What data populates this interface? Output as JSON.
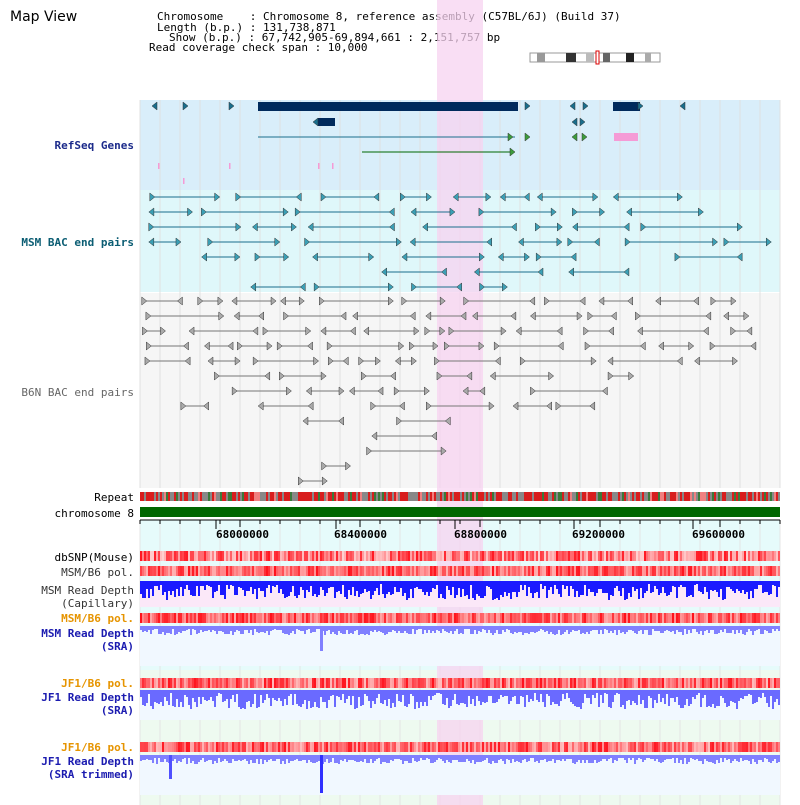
{
  "header": {
    "title": "Map View",
    "chromosome_line": "Chromosome    : Chromosome 8, reference assembly (C57BL/6J) (Build 37)",
    "length_line": "Length (b.p.) : 131,738,871",
    "show_line": "Show (b.p.) : 67,742,905-69,894,661 : 2,151,757 bp",
    "coverage_line": "Read coverage check span : 10,000"
  },
  "tracks": {
    "refseq": "RefSeq Genes",
    "msm_bac": "MSM BAC end pairs",
    "b6n_bac": "B6N BAC end pairs",
    "repeat": "Repeat",
    "chromosome": "chromosome 8",
    "dbsnp": "dbSNP(Mouse)",
    "msm_b6_pol_1": "MSM/B6 pol.",
    "msm_depth_cap_1": "MSM Read Depth",
    "msm_depth_cap_2": "(Capillary)",
    "msm_b6_pol_2": "MSM/B6 pol.",
    "msm_depth_sra_1": "MSM Read Depth",
    "msm_depth_sra_2": "(SRA)",
    "jf1_b6_pol_1": "JF1/B6 pol.",
    "jf1_depth_sra_1": "JF1 Read Depth",
    "jf1_depth_sra_2": "(SRA)",
    "jf1_b6_pol_2": "JF1/B6 pol.",
    "jf1_depth_trim_1": "JF1 Read Depth",
    "jf1_depth_trim_2": "(SRA trimmed)"
  },
  "axis": {
    "ticks": [
      "68000000",
      "68400000",
      "68800000",
      "69200000",
      "69600000"
    ]
  },
  "colors": {
    "refseq_bg": "#d9eefa",
    "msm_bg": "#dff7fa",
    "highlight": "#f7d3f0",
    "chromosome_bar": "#006600",
    "gene_dark": "#002a5c",
    "msm_feature": "#1a6e8c",
    "b6n_feature": "#777777",
    "depth_blue": "#1a1aff",
    "depth_light": "#8080ff"
  }
}
